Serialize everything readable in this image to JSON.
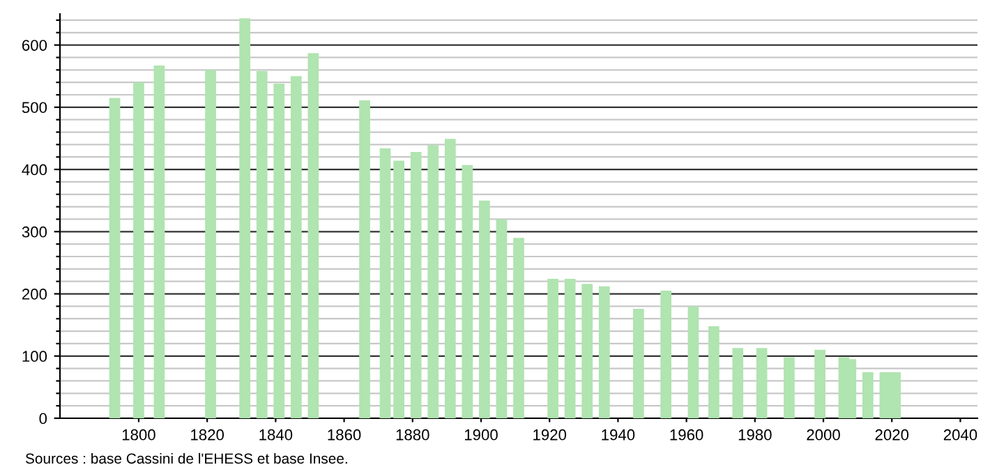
{
  "chart_data": {
    "type": "bar",
    "color": "#b0e4b0",
    "x": [
      1793,
      1800,
      1806,
      1821,
      1831,
      1836,
      1841,
      1846,
      1851,
      1866,
      1872,
      1876,
      1881,
      1886,
      1891,
      1896,
      1901,
      1906,
      1911,
      1921,
      1926,
      1931,
      1936,
      1946,
      1954,
      1962,
      1968,
      1975,
      1982,
      1990,
      1999,
      2006,
      2008,
      2013,
      2018,
      2021
    ],
    "values": [
      515,
      540,
      567,
      560,
      643,
      558,
      538,
      550,
      587,
      511,
      434,
      414,
      428,
      439,
      449,
      407,
      350,
      320,
      290,
      224,
      224,
      216,
      212,
      176,
      205,
      180,
      148,
      113,
      113,
      98,
      110,
      98,
      95,
      74,
      74,
      74
    ],
    "xlim": [
      1777,
      2045
    ],
    "xticks": [
      1800,
      1820,
      1840,
      1860,
      1880,
      1900,
      1920,
      1940,
      1960,
      1980,
      2000,
      2020,
      2040
    ],
    "ylim": [
      0,
      650
    ],
    "yticks": [
      0,
      {
        "value": 20,
        "label": null
      },
      {
        "value": 40,
        "label": null
      },
      {
        "value": 60,
        "label": null
      },
      {
        "value": 80,
        "label": null
      },
      100,
      {
        "value": 120,
        "label": null
      },
      {
        "value": 140,
        "label": null
      },
      {
        "value": 160,
        "label": null
      },
      {
        "value": 180,
        "label": null
      },
      200,
      {
        "value": 220,
        "label": null
      },
      {
        "value": 240,
        "label": null
      },
      {
        "value": 260,
        "label": null
      },
      {
        "value": 280,
        "label": null
      },
      300,
      {
        "value": 320,
        "label": null
      },
      {
        "value": 340,
        "label": null
      },
      {
        "value": 360,
        "label": null
      },
      {
        "value": 380,
        "label": null
      },
      400,
      {
        "value": 420,
        "label": null
      },
      {
        "value": 440,
        "label": null
      },
      {
        "value": 460,
        "label": null
      },
      {
        "value": 480,
        "label": null
      },
      500,
      {
        "value": 520,
        "label": null
      },
      {
        "value": 540,
        "label": null
      },
      {
        "value": 560,
        "label": null
      },
      {
        "value": 580,
        "label": null
      },
      600,
      {
        "value": 620,
        "label": null
      },
      {
        "value": 640,
        "label": null
      }
    ],
    "grid": "y",
    "annotations": [
      "Sources : base Cassini de l'EHESS et base Insee."
    ]
  }
}
